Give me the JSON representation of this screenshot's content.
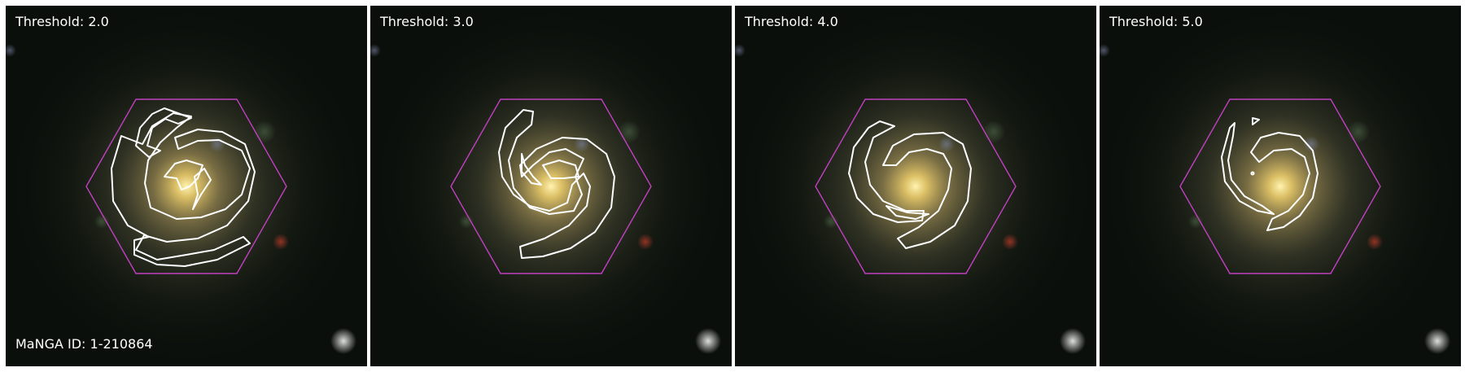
{
  "panels": [
    {
      "threshold_label": "Threshold: 2.0"
    },
    {
      "threshold_label": "Threshold: 3.0"
    },
    {
      "threshold_label": "Threshold: 4.0"
    },
    {
      "threshold_label": "Threshold: 5.0"
    }
  ],
  "manga_id_label": "MaNGA ID: 1-210864",
  "colors": {
    "hexagon": "#c040c0",
    "contour": "#ffffff",
    "background": "#0a0d0a"
  },
  "icons": [
    "galaxy-image",
    "ifu-hexagon",
    "spiral-arm-contour"
  ]
}
